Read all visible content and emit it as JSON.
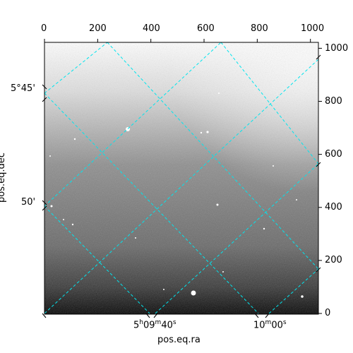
{
  "axes": {
    "xlabel": "pos.eq.ra",
    "ylabel": "pos.eq.dec",
    "top_ticks": [
      "0",
      "200",
      "400",
      "600",
      "800",
      "1000"
    ],
    "right_ticks": [
      "0",
      "200",
      "400",
      "600",
      "800",
      "1000"
    ],
    "left_ticks": [
      {
        "main": "5°45'"
      },
      {
        "main": "50'"
      }
    ],
    "bottom_ticks": [
      {
        "h": "5",
        "hs": "h",
        "m": "09",
        "ms": "m",
        "s": "40",
        "ss": "s"
      },
      {
        "m": "10",
        "ms": "m",
        "s": "00",
        "ss": "s"
      }
    ]
  },
  "style": {
    "grid_color": "#00e5ee"
  }
}
